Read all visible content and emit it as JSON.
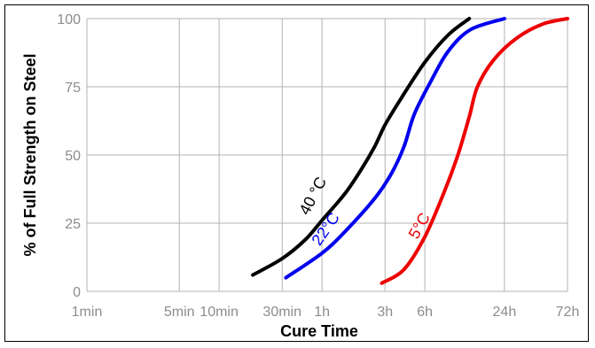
{
  "chart_data": {
    "type": "line",
    "xlabel": "Cure Time",
    "ylabel": "% of Full Strength on Steel",
    "x_scale": "log",
    "x_ticks": [
      {
        "label": "1min",
        "minutes": 1
      },
      {
        "label": "5min",
        "minutes": 5
      },
      {
        "label": "10min",
        "minutes": 10
      },
      {
        "label": "30min",
        "minutes": 30
      },
      {
        "label": "1h",
        "minutes": 60
      },
      {
        "label": "3h",
        "minutes": 180
      },
      {
        "label": "6h",
        "minutes": 360
      },
      {
        "label": "24h",
        "minutes": 1440
      },
      {
        "label": "72h",
        "minutes": 4320
      }
    ],
    "y_ticks": [
      0,
      25,
      50,
      75,
      100
    ],
    "ylim": [
      0,
      100
    ],
    "grid": true,
    "series": [
      {
        "name": "40 °C",
        "color": "#000000",
        "points": [
          {
            "minutes": 18,
            "value": 6
          },
          {
            "minutes": 30,
            "value": 12
          },
          {
            "minutes": 45,
            "value": 19
          },
          {
            "minutes": 60,
            "value": 26
          },
          {
            "minutes": 90,
            "value": 36
          },
          {
            "minutes": 120,
            "value": 45
          },
          {
            "minutes": 150,
            "value": 53
          },
          {
            "minutes": 180,
            "value": 61
          },
          {
            "minutes": 240,
            "value": 71
          },
          {
            "minutes": 360,
            "value": 84
          },
          {
            "minutes": 540,
            "value": 94
          },
          {
            "minutes": 780,
            "value": 100
          }
        ]
      },
      {
        "name": "22°C",
        "color": "#0000ee",
        "points": [
          {
            "minutes": 32,
            "value": 5
          },
          {
            "minutes": 60,
            "value": 14
          },
          {
            "minutes": 90,
            "value": 22
          },
          {
            "minutes": 150,
            "value": 34
          },
          {
            "minutes": 200,
            "value": 43
          },
          {
            "minutes": 250,
            "value": 53
          },
          {
            "minutes": 300,
            "value": 65
          },
          {
            "minutes": 400,
            "value": 77
          },
          {
            "minutes": 540,
            "value": 88
          },
          {
            "minutes": 800,
            "value": 96
          },
          {
            "minutes": 1440,
            "value": 100
          }
        ]
      },
      {
        "name": "5°C",
        "color": "#ee0000",
        "points": [
          {
            "minutes": 170,
            "value": 3
          },
          {
            "minutes": 250,
            "value": 8
          },
          {
            "minutes": 360,
            "value": 20
          },
          {
            "minutes": 500,
            "value": 36
          },
          {
            "minutes": 640,
            "value": 50
          },
          {
            "minutes": 780,
            "value": 64
          },
          {
            "minutes": 900,
            "value": 75
          },
          {
            "minutes": 1200,
            "value": 85
          },
          {
            "minutes": 1800,
            "value": 93
          },
          {
            "minutes": 2800,
            "value": 98
          },
          {
            "minutes": 4320,
            "value": 100
          }
        ]
      }
    ],
    "annotations": [
      {
        "text": "40 °C",
        "series": "40 °C"
      },
      {
        "text": "22°C",
        "series": "22°C"
      },
      {
        "text": "5°C",
        "series": "5°C"
      }
    ]
  }
}
